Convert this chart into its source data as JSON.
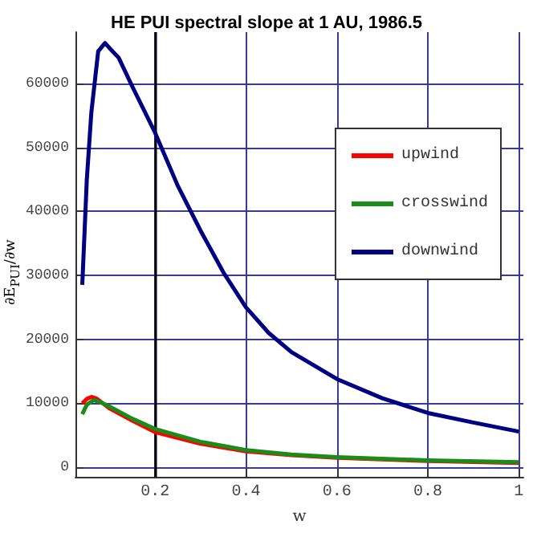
{
  "chart_data": {
    "type": "line",
    "title": "HE PUI spectral slope at 1 AU, 1986.5",
    "xlabel": "w",
    "ylabel": "∂E$_{PUI}$/∂w",
    "xlim": [
      0.025,
      1.01
    ],
    "xticks": [
      0.2,
      0.4,
      0.6,
      0.8,
      1
    ],
    "ylim": [
      -1500,
      68000
    ],
    "yticks": [
      0,
      10000,
      20000,
      30000,
      40000,
      50000,
      60000
    ],
    "grid": true,
    "legend": "top right",
    "line_style": "solid",
    "marker": "none",
    "ref_lines": [
      {
        "axis": "x",
        "value": 0.2,
        "color": "#000000"
      }
    ],
    "series": [
      {
        "name": "upwind",
        "color": "#ff0000",
        "x": [
          0.04,
          0.05,
          0.06,
          0.07,
          0.08,
          0.1,
          0.15,
          0.2,
          0.3,
          0.4,
          0.5,
          0.6,
          0.8,
          1
        ],
        "values": [
          10000,
          10700,
          11000,
          10800,
          10300,
          9200,
          7300,
          5500,
          3700,
          2500,
          1900,
          1500,
          1000,
          700
        ]
      },
      {
        "name": "crosswind",
        "color": "#1a8c1a",
        "x": [
          0.04,
          0.05,
          0.065,
          0.08,
          0.1,
          0.15,
          0.2,
          0.3,
          0.4,
          0.5,
          0.6,
          0.8,
          1
        ],
        "values": [
          8300,
          9800,
          10500,
          10200,
          9500,
          7600,
          6000,
          4000,
          2700,
          2000,
          1600,
          1100,
          800
        ]
      },
      {
        "name": "downwind",
        "color": "#000080",
        "x": [
          0.04,
          0.05,
          0.06,
          0.075,
          0.09,
          0.1,
          0.12,
          0.15,
          0.2,
          0.25,
          0.3,
          0.35,
          0.4,
          0.45,
          0.5,
          0.6,
          0.7,
          0.8,
          0.9,
          1
        ],
        "values": [
          28500,
          45000,
          55500,
          65000,
          66300,
          65500,
          64000,
          59500,
          52300,
          44000,
          37000,
          30500,
          25000,
          21000,
          18000,
          13800,
          10800,
          8500,
          7000,
          5600
        ]
      }
    ]
  }
}
